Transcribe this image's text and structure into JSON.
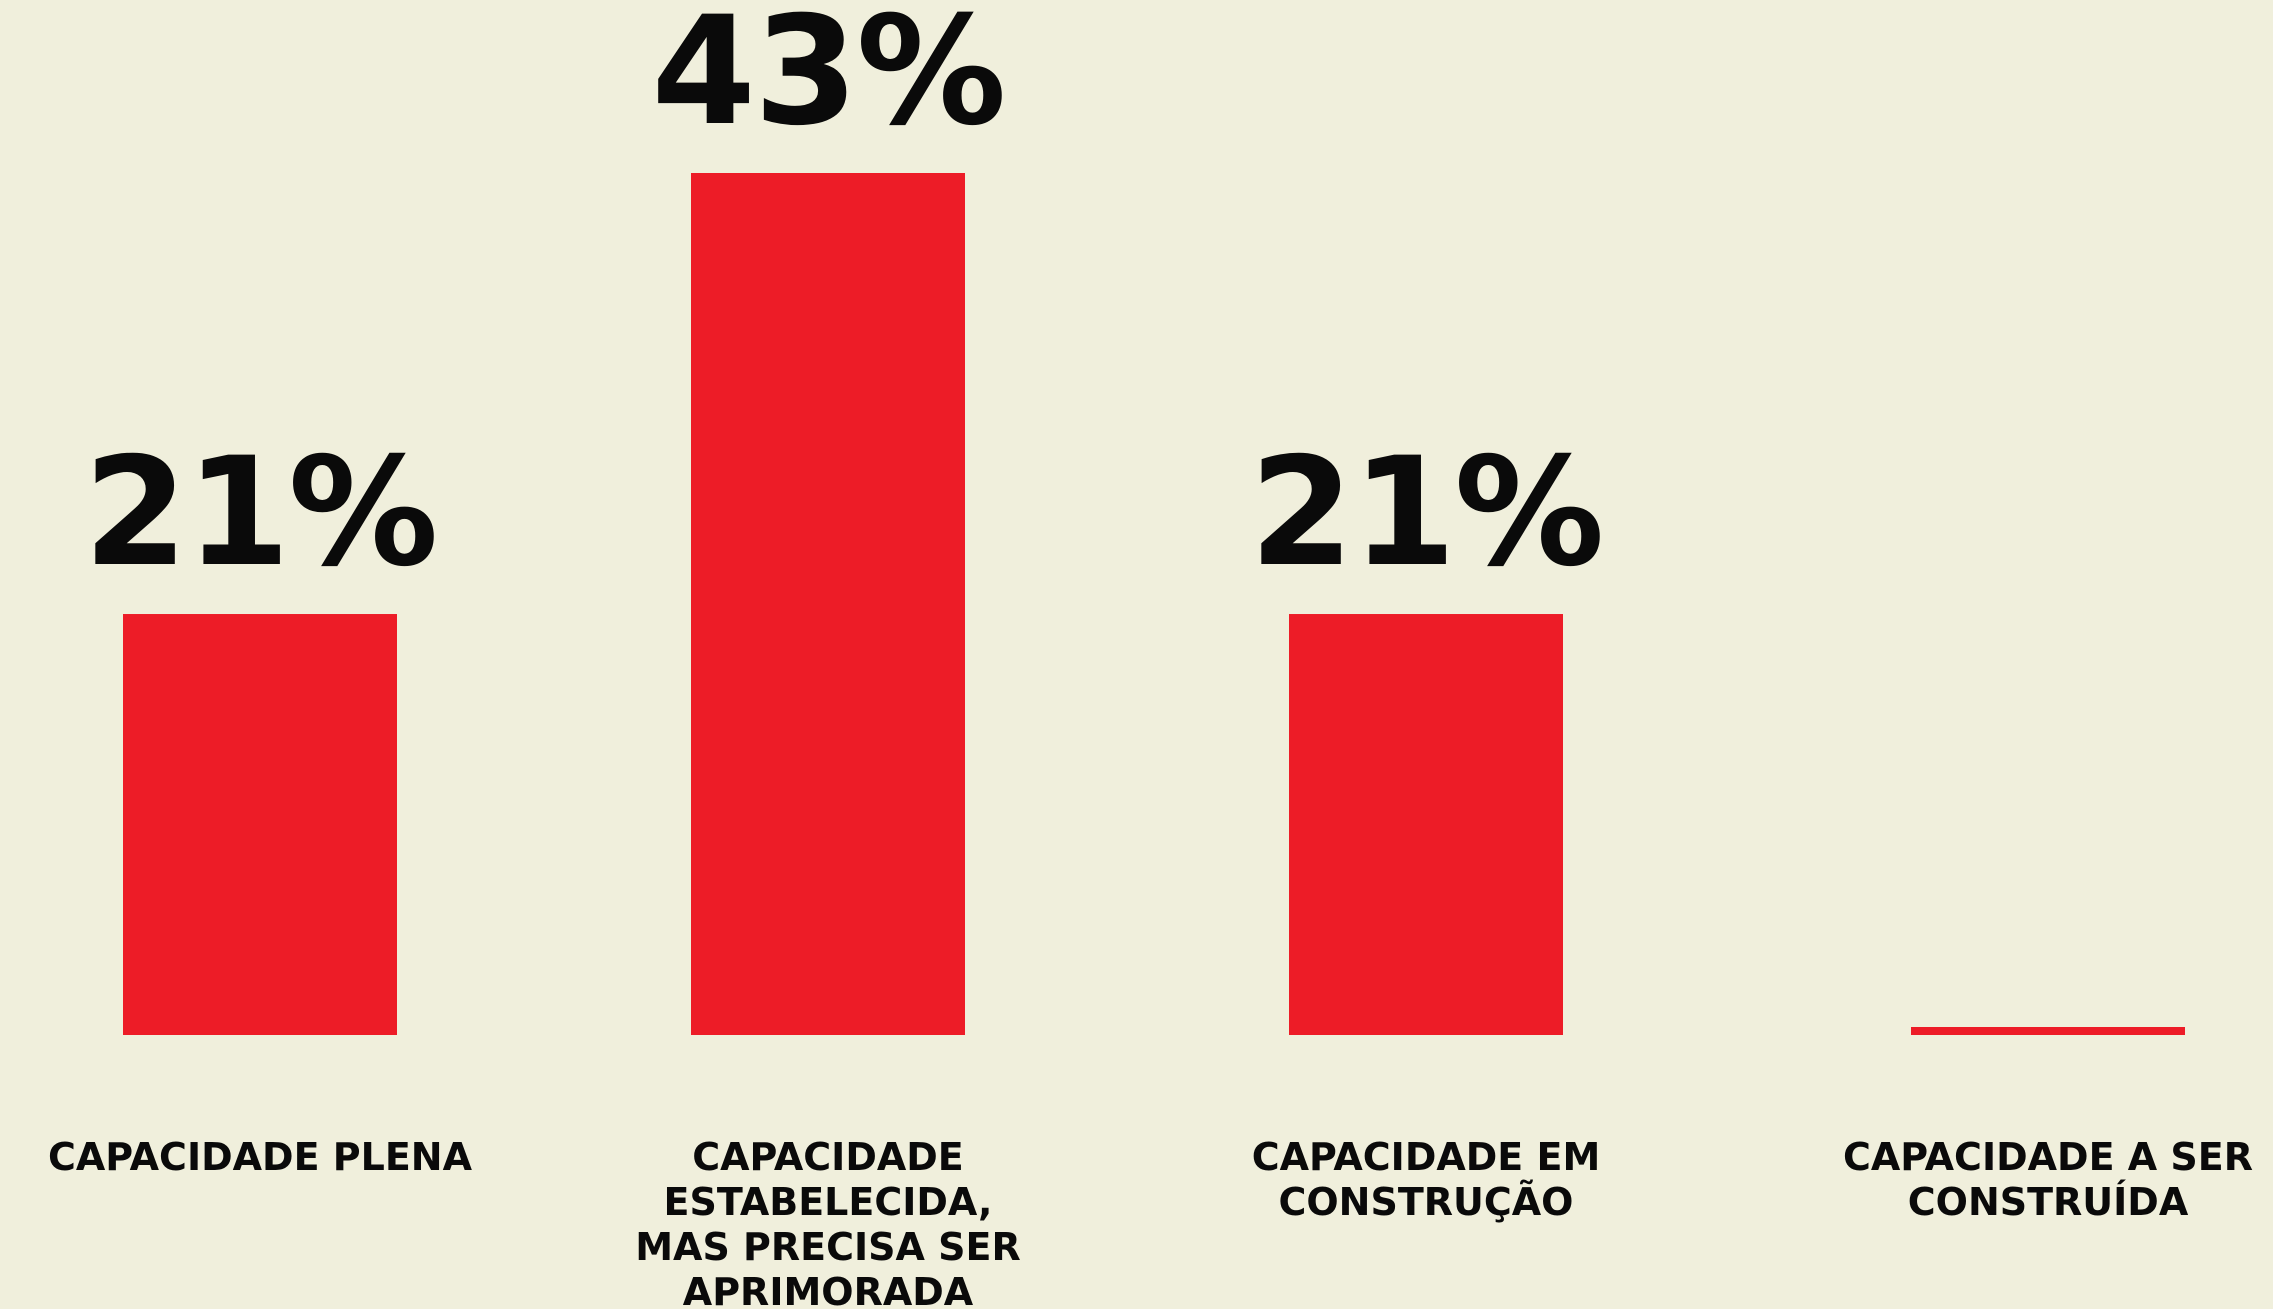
{
  "colors": {
    "background": "#f0efdc",
    "bar": "#ed1c27",
    "text": "#0a0a0a"
  },
  "chart_data": {
    "type": "bar",
    "categories": [
      "CAPACIDADE PLENA",
      "CAPACIDADE ESTABELECIDA, MAS PRECISA SER APRIMORADA",
      "CAPACIDADE EM CONSTRUÇÃO",
      "CAPACIDADE A SER CONSTRUÍDA"
    ],
    "category_lines": [
      [
        "CAPACIDADE PLENA"
      ],
      [
        "CAPACIDADE",
        "ESTABELECIDA,",
        "MAS PRECISA SER",
        "APRIMORADA"
      ],
      [
        "CAPACIDADE EM",
        "CONSTRUÇÃO"
      ],
      [
        "CAPACIDADE A SER",
        "CONSTRUÍDA"
      ]
    ],
    "values": [
      21,
      43,
      21,
      0
    ],
    "data_labels": [
      "21%",
      "43%",
      "21%",
      ""
    ],
    "ylim": [
      0,
      43
    ],
    "grid": false,
    "legend": "none",
    "title": "",
    "xlabel": "",
    "ylabel": ""
  }
}
